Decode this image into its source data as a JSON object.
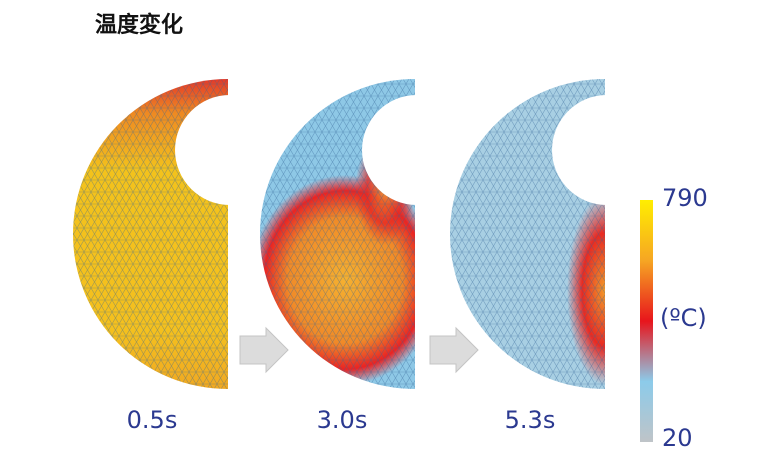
{
  "title": "温度変化",
  "panels": [
    {
      "label": "0.5s"
    },
    {
      "label": "3.0s"
    },
    {
      "label": "5.3s"
    }
  ],
  "colorbar": {
    "max": 790,
    "unit": "(ºC)",
    "min": 20
  }
}
